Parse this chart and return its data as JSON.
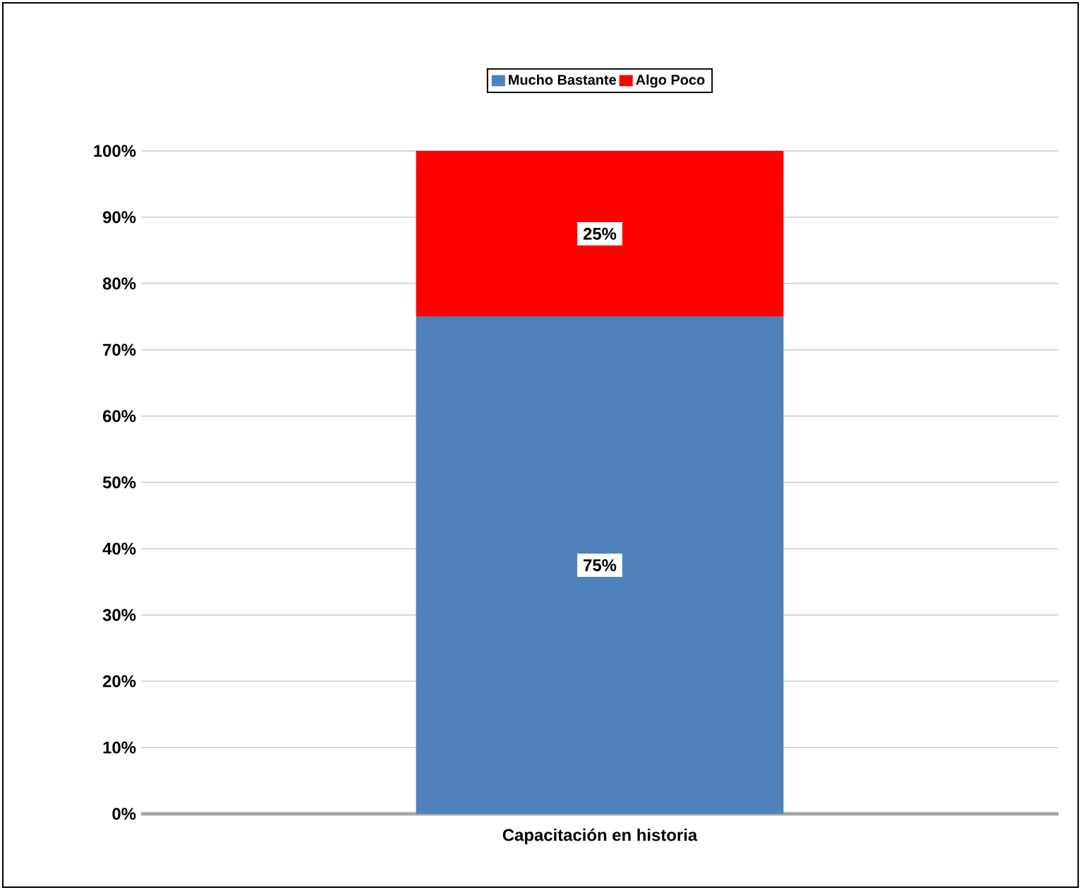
{
  "chart_data": {
    "type": "bar",
    "stacked": true,
    "xlabel": "Capacitación en historia",
    "categories": [
      null
    ],
    "series": [
      {
        "name": "Mucho Bastante",
        "color": "#4f81bd",
        "values": [
          75
        ],
        "value_labels": [
          "75%"
        ]
      },
      {
        "name": "Algo Poco",
        "color": "#ff0000",
        "values": [
          25
        ],
        "value_labels": [
          "25%"
        ]
      }
    ],
    "ylim": [
      0,
      100
    ],
    "yticks": [
      {
        "value": 0,
        "label": "0%"
      },
      {
        "value": 10,
        "label": "10%"
      },
      {
        "value": 20,
        "label": "20%"
      },
      {
        "value": 30,
        "label": "30%"
      },
      {
        "value": 40,
        "label": "40%"
      },
      {
        "value": 50,
        "label": "50%"
      },
      {
        "value": 60,
        "label": "60%"
      },
      {
        "value": 70,
        "label": "70%"
      },
      {
        "value": 80,
        "label": "80%"
      },
      {
        "value": 90,
        "label": "90%"
      },
      {
        "value": 100,
        "label": "100%"
      }
    ],
    "grid": "y",
    "legend": "top"
  }
}
